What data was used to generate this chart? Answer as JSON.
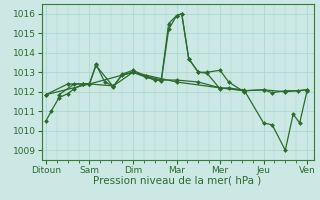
{
  "background_color": "#cce8e4",
  "grid_color": "#a8d4ce",
  "line_color": "#2d6a2d",
  "marker_color": "#2d6a2d",
  "xlabel": "Pression niveau de la mer( hPa )",
  "xlabels": [
    "Ditoun",
    "Sam",
    "Dim",
    "Mar",
    "Mer",
    "Jeu",
    "Ven"
  ],
  "xtick_positions": [
    0,
    1,
    2,
    3,
    4,
    5,
    6
  ],
  "ylim": [
    1008.5,
    1016.5
  ],
  "yticks": [
    1009,
    1010,
    1011,
    1012,
    1013,
    1014,
    1015,
    1016
  ],
  "lines": [
    {
      "x": [
        0.0,
        0.12,
        0.3,
        0.5,
        0.65,
        0.85,
        1.0,
        1.15,
        1.35,
        1.55,
        1.75,
        2.0,
        2.3,
        2.65,
        2.82,
        3.0,
        3.12,
        3.28,
        3.5,
        3.7,
        4.0,
        4.2,
        4.55,
        5.0,
        5.2,
        5.5,
        5.8,
        6.0
      ],
      "y": [
        1010.5,
        1011.0,
        1011.7,
        1011.9,
        1012.15,
        1012.4,
        1012.4,
        1013.4,
        1012.5,
        1012.3,
        1012.85,
        1013.0,
        1012.75,
        1012.55,
        1015.2,
        1015.9,
        1016.0,
        1013.7,
        1013.0,
        1012.95,
        1012.15,
        1012.2,
        1012.05,
        1012.1,
        1011.95,
        1012.05,
        1012.05,
        1012.1
      ],
      "marker": "D",
      "markersize": 2.0,
      "linewidth": 0.9
    },
    {
      "x": [
        0.3,
        0.65,
        0.85,
        1.0,
        1.15,
        1.55,
        1.75,
        2.0,
        2.3,
        2.65,
        2.82,
        3.0,
        3.12,
        3.28,
        3.5,
        3.7,
        4.0,
        4.2,
        4.55
      ],
      "y": [
        1011.85,
        1012.4,
        1012.4,
        1012.4,
        1013.35,
        1012.25,
        1012.9,
        1013.1,
        1012.8,
        1012.6,
        1015.5,
        1015.9,
        1016.0,
        1013.7,
        1013.0,
        1013.0,
        1013.1,
        1012.5,
        1012.0
      ],
      "marker": "D",
      "markersize": 2.0,
      "linewidth": 0.9
    },
    {
      "x": [
        0.0,
        0.5,
        1.0,
        1.55,
        2.0,
        2.5,
        3.0,
        3.5,
        4.0,
        4.55,
        5.0,
        5.5,
        6.0
      ],
      "y": [
        1011.85,
        1012.4,
        1012.4,
        1012.3,
        1013.0,
        1012.6,
        1012.6,
        1012.5,
        1012.2,
        1012.05,
        1012.1,
        1012.0,
        1012.1
      ],
      "marker": "D",
      "markersize": 2.0,
      "linewidth": 0.9
    },
    {
      "x": [
        0.0,
        1.0,
        2.0,
        3.0,
        4.0,
        4.55,
        5.0,
        5.2,
        5.5,
        5.68,
        5.83,
        6.0
      ],
      "y": [
        1011.85,
        1012.4,
        1013.0,
        1012.5,
        1012.2,
        1012.1,
        1010.4,
        1010.3,
        1009.0,
        1010.85,
        1010.4,
        1012.05
      ],
      "marker": "D",
      "markersize": 2.0,
      "linewidth": 0.9
    }
  ],
  "font_color": "#2d6a2d",
  "tick_color": "#2d6a2d",
  "axes_color": "#3a7a3a",
  "xlabel_fontsize": 7.5,
  "tick_fontsize": 6.5
}
